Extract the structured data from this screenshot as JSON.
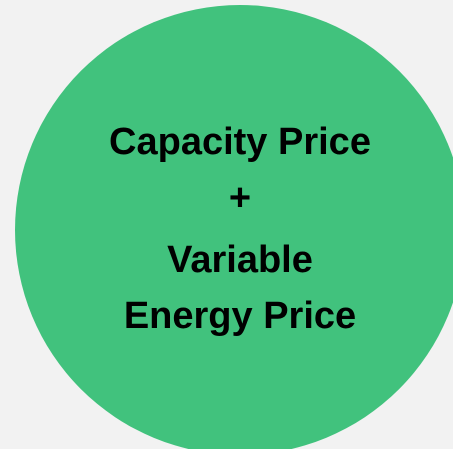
{
  "lines": [
    "Capacity Price",
    "+",
    "Variable",
    "Energy Price"
  ]
}
